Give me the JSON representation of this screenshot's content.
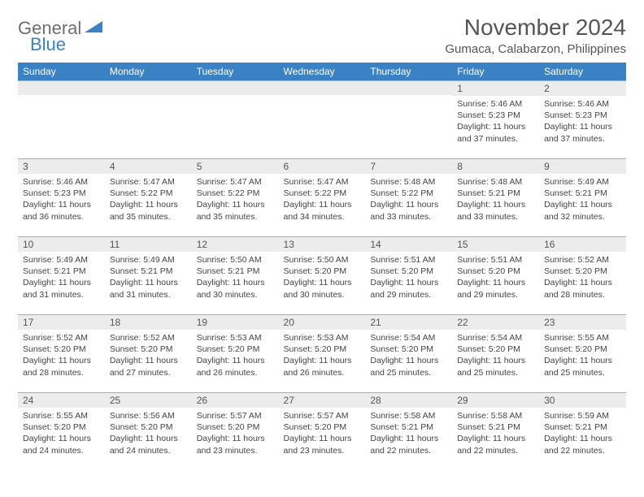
{
  "logo": {
    "general": "General",
    "blue": "Blue"
  },
  "title": "November 2024",
  "location": "Gumaca, Calabarzon, Philippines",
  "colors": {
    "header_bg": "#3b82c4",
    "header_text": "#ffffff",
    "daynum_bg": "#ececec",
    "text": "#444444",
    "border": "#b0b0b0"
  },
  "weekdays": [
    "Sunday",
    "Monday",
    "Tuesday",
    "Wednesday",
    "Thursday",
    "Friday",
    "Saturday"
  ],
  "weeks": [
    [
      null,
      null,
      null,
      null,
      null,
      {
        "n": "1",
        "sr": "Sunrise: 5:46 AM",
        "ss": "Sunset: 5:23 PM",
        "dl": "Daylight: 11 hours and 37 minutes."
      },
      {
        "n": "2",
        "sr": "Sunrise: 5:46 AM",
        "ss": "Sunset: 5:23 PM",
        "dl": "Daylight: 11 hours and 37 minutes."
      }
    ],
    [
      {
        "n": "3",
        "sr": "Sunrise: 5:46 AM",
        "ss": "Sunset: 5:23 PM",
        "dl": "Daylight: 11 hours and 36 minutes."
      },
      {
        "n": "4",
        "sr": "Sunrise: 5:47 AM",
        "ss": "Sunset: 5:22 PM",
        "dl": "Daylight: 11 hours and 35 minutes."
      },
      {
        "n": "5",
        "sr": "Sunrise: 5:47 AM",
        "ss": "Sunset: 5:22 PM",
        "dl": "Daylight: 11 hours and 35 minutes."
      },
      {
        "n": "6",
        "sr": "Sunrise: 5:47 AM",
        "ss": "Sunset: 5:22 PM",
        "dl": "Daylight: 11 hours and 34 minutes."
      },
      {
        "n": "7",
        "sr": "Sunrise: 5:48 AM",
        "ss": "Sunset: 5:22 PM",
        "dl": "Daylight: 11 hours and 33 minutes."
      },
      {
        "n": "8",
        "sr": "Sunrise: 5:48 AM",
        "ss": "Sunset: 5:21 PM",
        "dl": "Daylight: 11 hours and 33 minutes."
      },
      {
        "n": "9",
        "sr": "Sunrise: 5:49 AM",
        "ss": "Sunset: 5:21 PM",
        "dl": "Daylight: 11 hours and 32 minutes."
      }
    ],
    [
      {
        "n": "10",
        "sr": "Sunrise: 5:49 AM",
        "ss": "Sunset: 5:21 PM",
        "dl": "Daylight: 11 hours and 31 minutes."
      },
      {
        "n": "11",
        "sr": "Sunrise: 5:49 AM",
        "ss": "Sunset: 5:21 PM",
        "dl": "Daylight: 11 hours and 31 minutes."
      },
      {
        "n": "12",
        "sr": "Sunrise: 5:50 AM",
        "ss": "Sunset: 5:21 PM",
        "dl": "Daylight: 11 hours and 30 minutes."
      },
      {
        "n": "13",
        "sr": "Sunrise: 5:50 AM",
        "ss": "Sunset: 5:20 PM",
        "dl": "Daylight: 11 hours and 30 minutes."
      },
      {
        "n": "14",
        "sr": "Sunrise: 5:51 AM",
        "ss": "Sunset: 5:20 PM",
        "dl": "Daylight: 11 hours and 29 minutes."
      },
      {
        "n": "15",
        "sr": "Sunrise: 5:51 AM",
        "ss": "Sunset: 5:20 PM",
        "dl": "Daylight: 11 hours and 29 minutes."
      },
      {
        "n": "16",
        "sr": "Sunrise: 5:52 AM",
        "ss": "Sunset: 5:20 PM",
        "dl": "Daylight: 11 hours and 28 minutes."
      }
    ],
    [
      {
        "n": "17",
        "sr": "Sunrise: 5:52 AM",
        "ss": "Sunset: 5:20 PM",
        "dl": "Daylight: 11 hours and 28 minutes."
      },
      {
        "n": "18",
        "sr": "Sunrise: 5:52 AM",
        "ss": "Sunset: 5:20 PM",
        "dl": "Daylight: 11 hours and 27 minutes."
      },
      {
        "n": "19",
        "sr": "Sunrise: 5:53 AM",
        "ss": "Sunset: 5:20 PM",
        "dl": "Daylight: 11 hours and 26 minutes."
      },
      {
        "n": "20",
        "sr": "Sunrise: 5:53 AM",
        "ss": "Sunset: 5:20 PM",
        "dl": "Daylight: 11 hours and 26 minutes."
      },
      {
        "n": "21",
        "sr": "Sunrise: 5:54 AM",
        "ss": "Sunset: 5:20 PM",
        "dl": "Daylight: 11 hours and 25 minutes."
      },
      {
        "n": "22",
        "sr": "Sunrise: 5:54 AM",
        "ss": "Sunset: 5:20 PM",
        "dl": "Daylight: 11 hours and 25 minutes."
      },
      {
        "n": "23",
        "sr": "Sunrise: 5:55 AM",
        "ss": "Sunset: 5:20 PM",
        "dl": "Daylight: 11 hours and 25 minutes."
      }
    ],
    [
      {
        "n": "24",
        "sr": "Sunrise: 5:55 AM",
        "ss": "Sunset: 5:20 PM",
        "dl": "Daylight: 11 hours and 24 minutes."
      },
      {
        "n": "25",
        "sr": "Sunrise: 5:56 AM",
        "ss": "Sunset: 5:20 PM",
        "dl": "Daylight: 11 hours and 24 minutes."
      },
      {
        "n": "26",
        "sr": "Sunrise: 5:57 AM",
        "ss": "Sunset: 5:20 PM",
        "dl": "Daylight: 11 hours and 23 minutes."
      },
      {
        "n": "27",
        "sr": "Sunrise: 5:57 AM",
        "ss": "Sunset: 5:20 PM",
        "dl": "Daylight: 11 hours and 23 minutes."
      },
      {
        "n": "28",
        "sr": "Sunrise: 5:58 AM",
        "ss": "Sunset: 5:21 PM",
        "dl": "Daylight: 11 hours and 22 minutes."
      },
      {
        "n": "29",
        "sr": "Sunrise: 5:58 AM",
        "ss": "Sunset: 5:21 PM",
        "dl": "Daylight: 11 hours and 22 minutes."
      },
      {
        "n": "30",
        "sr": "Sunrise: 5:59 AM",
        "ss": "Sunset: 5:21 PM",
        "dl": "Daylight: 11 hours and 22 minutes."
      }
    ]
  ]
}
